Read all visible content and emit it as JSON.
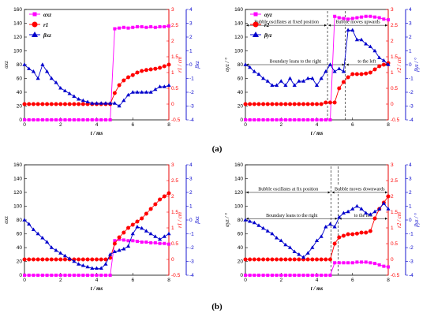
{
  "colors": {
    "pink": "#ff00ff",
    "red": "#ff0000",
    "blue": "#0000cc",
    "axis": "#000000"
  },
  "captions": {
    "a": "(a)",
    "b": "(b)"
  },
  "chart_data": [
    {
      "id": "a-left",
      "type": "line",
      "x": [
        0,
        0.25,
        0.5,
        0.75,
        1,
        1.25,
        1.5,
        1.75,
        2,
        2.25,
        2.5,
        2.75,
        3,
        3.25,
        3.5,
        3.75,
        4,
        4.25,
        4.5,
        4.75,
        5,
        5.25,
        5.5,
        5.75,
        6,
        6.25,
        6.5,
        6.75,
        7,
        7.25,
        7.5,
        7.75,
        8
      ],
      "xlabel": "t / ms",
      "xlim": [
        0,
        8
      ],
      "xticks": [
        0,
        2,
        4,
        6,
        8
      ],
      "left_axis": {
        "label": "αxz",
        "lim": [
          0,
          160
        ],
        "ticks": [
          0,
          20,
          40,
          60,
          80,
          100,
          120,
          140,
          160
        ]
      },
      "right_axis1": {
        "label": "r1 / cm",
        "lim": [
          -0.5,
          3
        ],
        "ticks": [
          -0.5,
          0,
          0.5,
          1,
          1.5,
          2,
          2.5,
          3
        ]
      },
      "right_axis2": {
        "label": "βxz",
        "lim": [
          -4,
          4
        ],
        "ticks": [
          -4,
          -3,
          -2,
          -1,
          0,
          1,
          2,
          3,
          4
        ]
      },
      "legend": [
        "αxz",
        "r1",
        "βxz"
      ],
      "legend_position": "top-left",
      "series": [
        {
          "name": "αxz",
          "axis": "left",
          "marker": "square",
          "color": "pink",
          "values": [
            0,
            0,
            0,
            0,
            0,
            0,
            0,
            0,
            0,
            0,
            0,
            0,
            0,
            0,
            0,
            0,
            0,
            0,
            0,
            0,
            132,
            133,
            134,
            133,
            134,
            135,
            135,
            134,
            135,
            134,
            135,
            135,
            136
          ]
        },
        {
          "name": "r1",
          "axis": "right1",
          "marker": "circle",
          "color": "red",
          "values": [
            0,
            0,
            0,
            0,
            0,
            0,
            0,
            0,
            0,
            0,
            0,
            0,
            0,
            0,
            0,
            0,
            0,
            0,
            0,
            0,
            0.35,
            0.6,
            0.75,
            0.85,
            0.92,
            1.0,
            1.05,
            1.08,
            1.1,
            1.12,
            1.15,
            1.2,
            1.25
          ]
        },
        {
          "name": "βxz",
          "axis": "right2",
          "marker": "triangle",
          "color": "blue",
          "values": [
            0,
            -0.3,
            -0.5,
            -1.0,
            0,
            -0.5,
            -1.0,
            -1.3,
            -1.7,
            -1.9,
            -2.1,
            -2.3,
            -2.5,
            -2.6,
            -2.7,
            -2.8,
            -2.8,
            -2.8,
            -2.8,
            -2.8,
            -2.8,
            -3.0,
            -2.6,
            -2.2,
            -2.0,
            -2.0,
            -2.0,
            -2.0,
            -2.0,
            -1.8,
            -1.6,
            -1.6,
            -1.5
          ]
        }
      ]
    },
    {
      "id": "a-right",
      "type": "line",
      "x": [
        0,
        0.25,
        0.5,
        0.75,
        1,
        1.25,
        1.5,
        1.75,
        2,
        2.25,
        2.5,
        2.75,
        3,
        3.25,
        3.5,
        3.75,
        4,
        4.25,
        4.5,
        4.75,
        5,
        5.25,
        5.5,
        5.75,
        6,
        6.25,
        6.5,
        6.75,
        7,
        7.25,
        7.5,
        7.75,
        8
      ],
      "xlabel": "t / ms",
      "xlim": [
        0,
        8
      ],
      "xticks": [
        0,
        2,
        4,
        6,
        8
      ],
      "left_axis": {
        "label": "αyz / °",
        "lim": [
          0,
          160
        ],
        "ticks": [
          0,
          20,
          40,
          60,
          80,
          100,
          120,
          140,
          160
        ]
      },
      "right_axis1": {
        "label": "r2 / cm",
        "lim": [
          -0.5,
          3
        ],
        "ticks": [
          -0.5,
          0,
          0.5,
          1,
          1.5,
          2,
          2.5,
          3
        ]
      },
      "right_axis2": {
        "label": "βyz / °",
        "lim": [
          -4,
          4
        ],
        "ticks": [
          -4,
          -3,
          -2,
          -1,
          0,
          1,
          2,
          3,
          4
        ]
      },
      "legend": [
        "αyz",
        "r2",
        "βyz"
      ],
      "legend_position": "top-left",
      "annotations": [
        {
          "text": "Bubble oscillates at fixed position",
          "x_from": 0,
          "x_to": 4.6,
          "y": 137
        },
        {
          "text": "Bubble moves upwards",
          "x_from": 4.6,
          "x_to": 8,
          "y": 137
        },
        {
          "text": "Boundary leans to the right",
          "x_from": 0,
          "x_to": 5.6,
          "y": 80
        },
        {
          "text": "to the left",
          "x_from": 5.6,
          "x_to": 8,
          "y": 80
        }
      ],
      "vlines": [
        4.6,
        5.6
      ],
      "series": [
        {
          "name": "αyz",
          "axis": "left",
          "marker": "square",
          "color": "pink",
          "values": [
            0,
            0,
            0,
            0,
            0,
            0,
            0,
            0,
            0,
            0,
            0,
            0,
            0,
            0,
            0,
            0,
            0,
            0,
            0,
            0,
            150,
            148,
            147,
            146,
            147,
            148,
            149,
            150,
            150,
            149,
            148,
            146,
            145
          ]
        },
        {
          "name": "r2",
          "axis": "right1",
          "marker": "circle",
          "color": "red",
          "values": [
            0,
            0,
            0,
            0,
            0,
            0,
            0,
            0,
            0,
            0,
            0,
            0,
            0,
            0,
            0,
            0,
            0,
            0,
            0.05,
            0.05,
            0.05,
            0.5,
            0.7,
            0.85,
            0.95,
            0.95,
            0.95,
            0.97,
            1.0,
            1.1,
            1.2,
            1.25,
            1.3
          ]
        },
        {
          "name": "βyz",
          "axis": "right2",
          "marker": "triangle",
          "color": "blue",
          "values": [
            0,
            -0.2,
            -0.5,
            -0.7,
            -1.0,
            -1.2,
            -1.5,
            -1.5,
            -1.2,
            -1.5,
            -1.0,
            -1.5,
            -1.2,
            -1.2,
            -1.0,
            -1.0,
            -1.5,
            -1.0,
            -0.5,
            0,
            -0.5,
            -0.3,
            -0.5,
            2.5,
            2.5,
            1.8,
            1.8,
            1.5,
            1.3,
            1.0,
            0.5,
            0.3,
            0
          ]
        }
      ]
    },
    {
      "id": "b-left",
      "type": "line",
      "x": [
        0,
        0.25,
        0.5,
        0.75,
        1,
        1.25,
        1.5,
        1.75,
        2,
        2.25,
        2.5,
        2.75,
        3,
        3.25,
        3.5,
        3.75,
        4,
        4.25,
        4.5,
        4.75,
        5,
        5.25,
        5.5,
        5.75,
        6,
        6.25,
        6.5,
        6.75,
        7,
        7.25,
        7.5,
        7.75,
        8
      ],
      "xlabel": "t / ms",
      "xlim": [
        0,
        8
      ],
      "xticks": [
        0,
        2,
        4,
        6,
        8
      ],
      "left_axis": {
        "label": "αxz",
        "lim": [
          0,
          160
        ],
        "ticks": [
          0,
          20,
          40,
          60,
          80,
          100,
          120,
          140,
          160
        ]
      },
      "right_axis1": {
        "label": "r1 / cm",
        "lim": [
          -0.5,
          3
        ],
        "ticks": [
          -0.5,
          0,
          0.5,
          1,
          1.5,
          2,
          2.5,
          3
        ]
      },
      "right_axis2": {
        "label": "βxz",
        "lim": [
          -4,
          4
        ],
        "ticks": [
          -4,
          -3,
          -2,
          -1,
          0,
          1,
          2,
          3,
          4
        ]
      },
      "series": [
        {
          "name": "αxz",
          "axis": "left",
          "marker": "square",
          "color": "pink",
          "values": [
            0,
            0,
            0,
            0,
            0,
            0,
            0,
            0,
            0,
            0,
            0,
            0,
            0,
            0,
            0,
            0,
            0,
            0,
            0,
            0,
            50,
            52,
            51,
            50,
            50,
            49,
            48,
            48,
            47,
            47,
            46,
            46,
            45
          ]
        },
        {
          "name": "r1",
          "axis": "right1",
          "marker": "circle",
          "color": "red",
          "values": [
            0,
            0,
            0,
            0,
            0,
            0,
            0,
            0,
            0,
            0,
            0,
            0,
            0,
            0,
            0,
            0,
            0,
            0,
            0,
            0.05,
            0.5,
            0.7,
            0.85,
            1.0,
            1.1,
            1.2,
            1.3,
            1.45,
            1.6,
            1.75,
            1.9,
            2.0,
            2.1
          ]
        },
        {
          "name": "βxz",
          "axis": "right2",
          "marker": "triangle",
          "color": "blue",
          "values": [
            0,
            -0.3,
            -0.7,
            -1.0,
            -1.3,
            -1.6,
            -2.0,
            -2.2,
            -2.4,
            -2.6,
            -2.8,
            -3.0,
            -3.2,
            -3.3,
            -3.4,
            -3.5,
            -3.5,
            -3.5,
            -3.2,
            -2.5,
            -2.3,
            -2.2,
            -2.1,
            -1.9,
            -1.0,
            -0.5,
            -0.6,
            -0.8,
            -1.0,
            -1.2,
            -1.4,
            -1.2,
            -1.0
          ]
        }
      ]
    },
    {
      "id": "b-right",
      "type": "line",
      "x": [
        0,
        0.25,
        0.5,
        0.75,
        1,
        1.25,
        1.5,
        1.75,
        2,
        2.25,
        2.5,
        2.75,
        3,
        3.25,
        3.5,
        3.75,
        4,
        4.25,
        4.5,
        4.75,
        5,
        5.25,
        5.5,
        5.75,
        6,
        6.25,
        6.5,
        6.75,
        7,
        7.25,
        7.5,
        7.75,
        8
      ],
      "xlabel": "t / ms",
      "xlim": [
        0,
        8
      ],
      "xticks": [
        0,
        2,
        4,
        6,
        8
      ],
      "left_axis": {
        "label": "αyz / °",
        "lim": [
          0,
          160
        ],
        "ticks": [
          0,
          20,
          40,
          60,
          80,
          100,
          120,
          140,
          160
        ]
      },
      "right_axis1": {
        "label": "r2 / cm",
        "lim": [
          -0.5,
          3
        ],
        "ticks": [
          -0.5,
          0,
          0.5,
          1,
          1.5,
          2,
          2.5,
          3
        ]
      },
      "right_axis2": {
        "label": "βyz / °",
        "lim": [
          -4,
          4
        ],
        "ticks": [
          -4,
          -3,
          -2,
          -1,
          0,
          1,
          2,
          3,
          4
        ]
      },
      "annotations": [
        {
          "text": "Bubble oscillates at fix position",
          "x_from": 0,
          "x_to": 4.8,
          "y": 120
        },
        {
          "text": "Bubble moves downwards",
          "x_from": 4.8,
          "x_to": 8,
          "y": 120
        },
        {
          "text": "Boundary leans to the right",
          "x_from": 0,
          "x_to": 5.2,
          "y": 82
        },
        {
          "text": "to the left",
          "x_from": 5.2,
          "x_to": 8,
          "y": 82
        }
      ],
      "vlines": [
        4.8,
        5.2
      ],
      "series": [
        {
          "name": "αyz",
          "axis": "left",
          "marker": "square",
          "color": "pink",
          "values": [
            0,
            0,
            0,
            0,
            0,
            0,
            0,
            0,
            0,
            0,
            0,
            0,
            0,
            0,
            0,
            0,
            0,
            0,
            0,
            0,
            18,
            18,
            18,
            18,
            18,
            19,
            19,
            19,
            18,
            17,
            15,
            13,
            12
          ]
        },
        {
          "name": "r2",
          "axis": "right1",
          "marker": "circle",
          "color": "red",
          "values": [
            0,
            0,
            0,
            0,
            0,
            0,
            0,
            0,
            0,
            0,
            0,
            0,
            0,
            0,
            0,
            0,
            0,
            0,
            0,
            0,
            0.5,
            0.7,
            0.75,
            0.8,
            0.8,
            0.82,
            0.85,
            0.85,
            0.9,
            1.3,
            1.6,
            1.8,
            2.0
          ]
        },
        {
          "name": "βyz",
          "axis": "right2",
          "marker": "triangle",
          "color": "blue",
          "values": [
            0,
            -0.1,
            -0.2,
            -0.4,
            -0.6,
            -0.8,
            -1.0,
            -1.3,
            -1.5,
            -1.8,
            -2.0,
            -2.3,
            -2.5,
            -2.7,
            -2.4,
            -2.0,
            -1.5,
            -1.2,
            -0.5,
            -0.3,
            -0.5,
            0.2,
            0.5,
            0.6,
            0.8,
            1.0,
            0.8,
            0.5,
            0.4,
            0.6,
            0.8,
            1.2,
            0.8
          ]
        }
      ]
    }
  ]
}
